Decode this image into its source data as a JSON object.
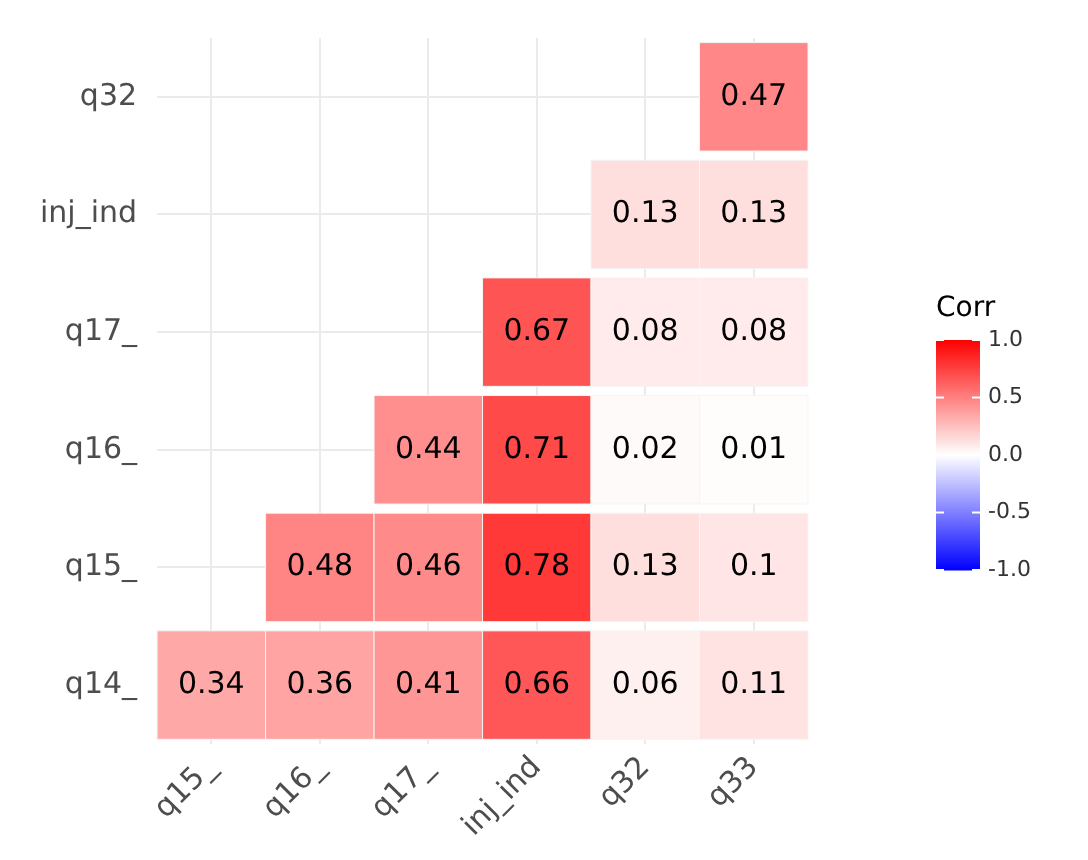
{
  "chart_data": {
    "type": "heatmap",
    "categories": [
      "q15_",
      "q16_",
      "q17_",
      "inj_ind",
      "q32",
      "q33"
    ],
    "y_categories": [
      "q32",
      "inj_ind",
      "q17_",
      "q16_",
      "q15_",
      "q14_"
    ],
    "cells": [
      [
        null,
        null,
        null,
        null,
        null,
        0.47
      ],
      [
        null,
        null,
        null,
        null,
        0.13,
        0.13
      ],
      [
        null,
        null,
        null,
        0.67,
        0.08,
        0.08
      ],
      [
        null,
        null,
        0.44,
        0.71,
        0.02,
        0.01
      ],
      [
        null,
        0.48,
        0.46,
        0.78,
        0.13,
        0.1
      ],
      [
        0.34,
        0.36,
        0.41,
        0.66,
        0.06,
        0.11
      ]
    ],
    "clabel": "Corr",
    "clim": [
      -1,
      1
    ],
    "cticks": [
      {
        "value": -1,
        "label": "-1.0"
      },
      {
        "value": -0.5,
        "label": "-0.5"
      },
      {
        "value": 0,
        "label": "0.0"
      },
      {
        "value": 0.5,
        "label": "0.5"
      },
      {
        "value": 1,
        "label": "1.0"
      }
    ],
    "data_labels": true,
    "grid": true
  }
}
